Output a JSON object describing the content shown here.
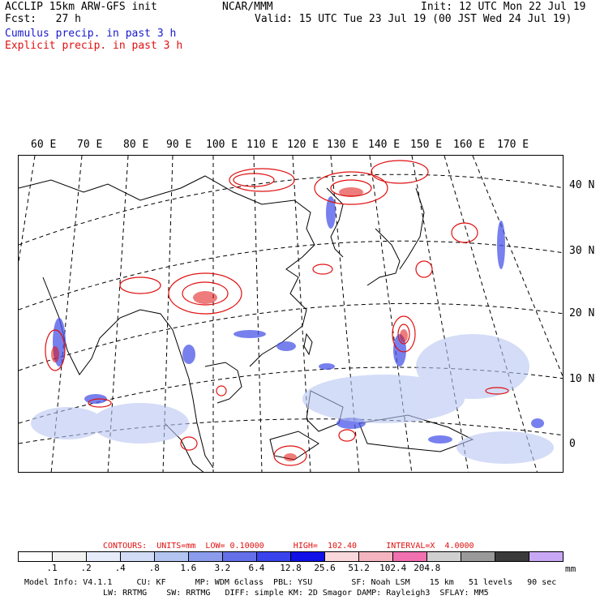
{
  "header": {
    "line1_left": "ACCLIP 15km ARW-GFS init",
    "line1_center": "NCAR/MMM",
    "line1_right": "Init: 12 UTC Mon 22 Jul 19",
    "line2_left": "Fcst:   27 h",
    "line2_right": "Valid: 15 UTC Tue 23 Jul 19 (00 JST Wed 24 Jul 19)",
    "line3": "Cumulus precip. in past 3 h",
    "line4": "Explicit precip. in past 3 h"
  },
  "map": {
    "lon_labels": [
      "60 E",
      "70 E",
      "80 E",
      "90 E",
      "100 E",
      "110 E",
      "120 E",
      "130 E",
      "140 E",
      "150 E",
      "160 E",
      "170 E"
    ],
    "lat_labels": [
      "40 N",
      "30 N",
      "20 N",
      "10 N",
      "0"
    ]
  },
  "contours": {
    "label": "CONTOURS:  UNITS=mm  LOW= 0.10000      HIGH=  102.40      INTERVAL=X  4.0000"
  },
  "colorbar": {
    "colors": [
      "#ffffff",
      "#f2f2f2",
      "#e6ecfa",
      "#d2dcf6",
      "#b4c4f0",
      "#8c9cec",
      "#6470ea",
      "#3a44ec",
      "#1010e8",
      "#f8d8da",
      "#f4b4c0",
      "#f070b0",
      "#d0d0d0",
      "#9a9a9a",
      "#3a3a3a",
      "#c8a8f4"
    ],
    "tick_labels": [
      ".1",
      ".2",
      ".4",
      ".8",
      "1.6",
      "3.2",
      "6.4",
      "12.8",
      "25.6",
      "51.2",
      "102.4",
      "204.8"
    ],
    "units": "mm"
  },
  "footer": {
    "line1": "Model Info: V4.1.1     CU: KF      MP: WDM 6class  PBL: YSU        SF: Noah LSM    15 km   51 levels   90 sec",
    "line2": "LW: RRTMG    SW: RRTMG   DIFF: simple KM: 2D Smagor DAMP: Rayleigh3  SFLAY: MM5"
  }
}
